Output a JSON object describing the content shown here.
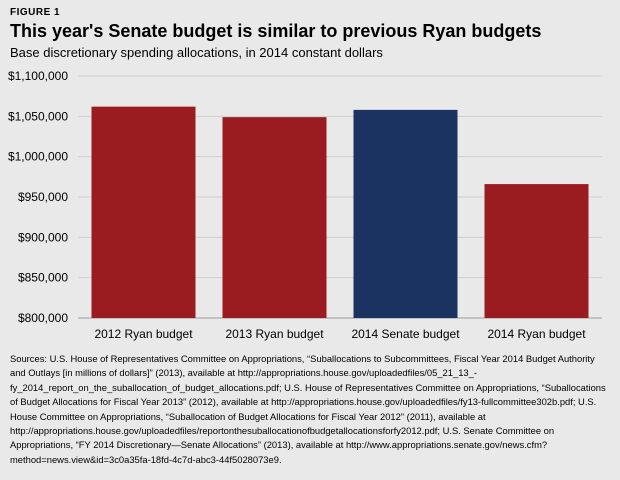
{
  "figure_label": "FIGURE 1",
  "chart_data": {
    "type": "bar",
    "title": "This year's Senate budget is similar to previous Ryan budgets",
    "subtitle": "Base discretionary spending allocations, in 2014 constant dollars",
    "xlabel": "",
    "ylabel": "",
    "categories": [
      "2012 Ryan budget",
      "2013 Ryan budget",
      "2014 Senate budget",
      "2014 Ryan budget"
    ],
    "values": [
      1062000,
      1049000,
      1058000,
      966000
    ],
    "colors": [
      "#9b1c20",
      "#9b1c20",
      "#1b3361",
      "#9b1c20"
    ],
    "ylim": [
      800000,
      1100000
    ],
    "yticks": [
      800000,
      850000,
      900000,
      950000,
      1000000,
      1050000,
      1100000
    ],
    "ytick_labels": [
      "$800,000",
      "$850,000",
      "$900,000",
      "$950,000",
      "$1,000,000",
      "$1,050,000",
      "$1,100,000"
    ],
    "grid": true
  },
  "sources": "Sources: U.S. House of Representatives Committee on Appropriations, “Suballocations to Subcommittees, Fiscal Year 2014 Budget Authority and Outlays [in millions of dollars]” (2013), available at http://appropriations.house.gov/uploadedfiles/05_21_13_-fy_2014_report_on_the_suballocation_of_budget_allocations.pdf; U.S. House of Representatives Committee on Appropriations, “Suballocations of Budget Allocations for Fiscal Year 2013” (2012), available at http://appropriations.house.gov/uploadedfiles/fy13-fullcommittee302b.pdf; U.S. House Committee on Appropriations, “Suballocation of Budget Allocations for Fiscal Year 2012” (2011), available at http://appropriations.house.gov/uploadedfiles/reportonthesuballocationofbudgetallocationsforfy2012.pdf; U.S. Senate Committee on Appropriations, “FY 2014 Discretionary—Senate Allocations” (2013), available at http://www.appropriations.senate.gov/news.cfm?method=news.view&id=3c0a35fa-18fd-4c7d-abc3-44f5028073e9."
}
